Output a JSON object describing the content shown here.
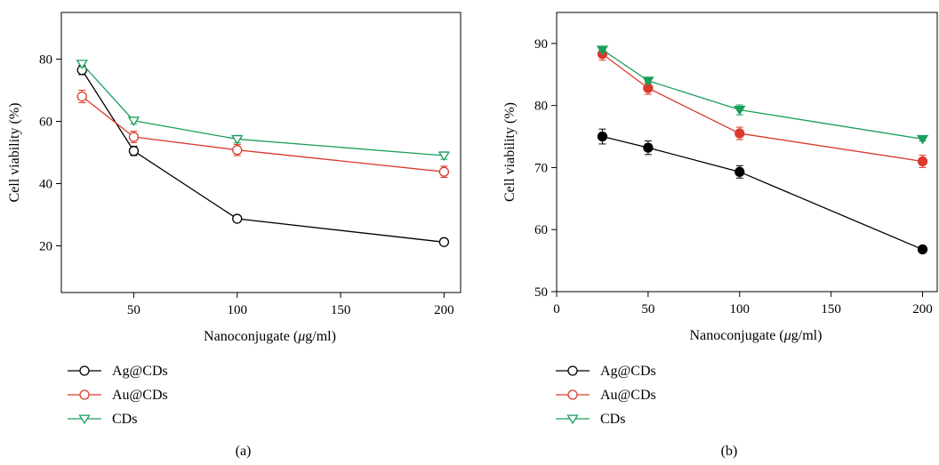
{
  "chart_data": [
    {
      "type": "line",
      "panel_label": "(a)",
      "xlabel_prefix": "Nanoconjugate (",
      "xlabel_mu": "μ",
      "xlabel_suffix": "g/ml)",
      "ylabel": "Cell viability (%)",
      "xlim": [
        15,
        208
      ],
      "ylim": [
        5,
        95
      ],
      "xticks": [
        50,
        100,
        150,
        200
      ],
      "yticks": [
        20,
        40,
        60,
        80
      ],
      "x": [
        25,
        50,
        100,
        200
      ],
      "series": [
        {
          "name": "Ag@CDs",
          "values": [
            76.5,
            50.5,
            28.7,
            21.2
          ],
          "errors": [
            1.5,
            1.5,
            0.8,
            0.8
          ],
          "color": "#000000",
          "marker": "circle",
          "filled": false
        },
        {
          "name": "Au@CDs",
          "values": [
            68.0,
            55.0,
            50.8,
            43.8
          ],
          "errors": [
            2.0,
            1.8,
            1.8,
            1.8
          ],
          "color": "#d93a2b",
          "marker": "circle",
          "filled": false
        },
        {
          "name": "CDs",
          "values": [
            78.5,
            60.2,
            54.3,
            49.0
          ],
          "errors": [
            1.0,
            1.0,
            1.2,
            1.2
          ],
          "color": "#1a9e5a",
          "marker": "triangle-down",
          "filled": false
        }
      ],
      "legend_position": "bottom-left"
    },
    {
      "type": "line",
      "panel_label": "(b)",
      "xlabel_prefix": "Nanoconjugate (",
      "xlabel_mu": "μ",
      "xlabel_suffix": "g/ml)",
      "ylabel": "Cell viability (%)",
      "xlim": [
        0,
        208
      ],
      "ylim": [
        50,
        95
      ],
      "xticks": [
        0,
        50,
        100,
        150,
        200
      ],
      "yticks": [
        50,
        60,
        70,
        80,
        90
      ],
      "x": [
        25,
        50,
        100,
        200
      ],
      "series": [
        {
          "name": "Ag@CDs",
          "values": [
            75.0,
            73.2,
            69.3,
            56.8
          ],
          "errors": [
            1.2,
            1.1,
            1.0,
            0.3
          ],
          "color": "#000000",
          "marker": "circle",
          "filled": true
        },
        {
          "name": "Au@CDs",
          "values": [
            88.3,
            82.8,
            75.5,
            71.0
          ],
          "errors": [
            1.0,
            1.0,
            1.0,
            1.0
          ],
          "color": "#d93a2b",
          "marker": "circle",
          "filled": true
        },
        {
          "name": "CDs",
          "values": [
            89.0,
            84.0,
            79.3,
            74.6
          ],
          "errors": [
            0.4,
            0.4,
            0.8,
            0.3
          ],
          "color": "#1a9e5a",
          "marker": "triangle-down",
          "filled": true
        }
      ],
      "legend_position": "bottom-left"
    }
  ]
}
